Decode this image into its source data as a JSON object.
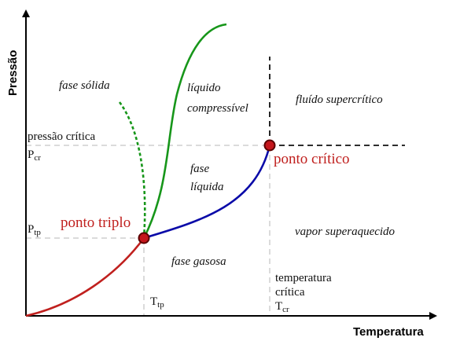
{
  "axes": {
    "x_title": "Temperatura",
    "y_title": "Pressão"
  },
  "regions": {
    "solid": "fase sólida",
    "compressible_liquid_1": "líquido",
    "compressible_liquid_2": "compressível",
    "supercritical": "fluído supercrítico",
    "liquid_1": "fase",
    "liquid_2": "líquida",
    "gas": "fase gasosa",
    "superheated_vapor": "vapor superaquecido"
  },
  "points": {
    "triple": "ponto triplo",
    "critical": "ponto crítico"
  },
  "markers": {
    "critical_pressure": "pressão crítica",
    "pcr_main": "P",
    "pcr_sub": "cr",
    "ptp_main": "P",
    "ptp_sub": "tp",
    "ttp_main": "T",
    "ttp_sub": "tp",
    "critical_temperature_1": "temperatura",
    "critical_temperature_2": "crítica",
    "tcr_main": "T",
    "tcr_sub": "cr"
  },
  "colors": {
    "sublimation_curve": "#c0201e",
    "vaporization_curve": "#0a0aa8",
    "fusion_curve": "#17961a",
    "point_fill": "#c4161c",
    "point_stroke": "#5a0000",
    "guide_line": "#cfcfcf",
    "critical_line": "#111111"
  }
}
